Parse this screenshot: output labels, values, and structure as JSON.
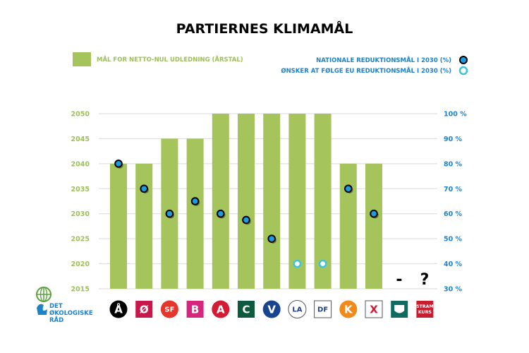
{
  "chart_data": {
    "type": "bar",
    "title": "PARTIERNES KLIMAMÅL",
    "legend": {
      "bars": "MÅL FOR NETTO-NUL UDLEDNING (ÅRSTAL)",
      "national": "NATIONALE REDUKTIONSMÅL I 2030 (%)",
      "eu": "ØNSKER AT FØLGE EU REDUKTIONSMÅL I 2030 (%)"
    },
    "left_axis": {
      "ticks": [
        "2015",
        "2020",
        "2025",
        "2030",
        "2035",
        "2040",
        "2045",
        "2050"
      ],
      "ylim": [
        2015,
        2050
      ]
    },
    "right_axis": {
      "ticks": [
        "30 %",
        "40 %",
        "50 %",
        "60 %",
        "70 %",
        "80 %",
        "90 %",
        "100 %"
      ],
      "ylim": [
        30,
        100
      ]
    },
    "categories": [
      {
        "label": "Å",
        "color": "#000000",
        "shape": "circle"
      },
      {
        "label": "Ø",
        "color": "#c8174b",
        "shape": "square"
      },
      {
        "label": "SF",
        "color": "#e4362a",
        "shape": "circle"
      },
      {
        "label": "B",
        "color": "#d6257f",
        "shape": "square"
      },
      {
        "label": "A",
        "color": "#d41b34",
        "shape": "circle"
      },
      {
        "label": "C",
        "color": "#0d5a3e",
        "shape": "square"
      },
      {
        "label": "V",
        "color": "#17458f",
        "shape": "circle"
      },
      {
        "label": "LA",
        "color": "#ffffff",
        "shape": "circle"
      },
      {
        "label": "DF",
        "color": "#ffffff",
        "shape": "square"
      },
      {
        "label": "K",
        "color": "#f08a1a",
        "shape": "circle"
      },
      {
        "label": "X",
        "color": "#ffffff",
        "shape": "square"
      },
      {
        "label": "",
        "color": "#0d6b62",
        "shape": "square"
      },
      {
        "label": "STRAM KURS",
        "color": "#c81d2e",
        "shape": "square"
      }
    ],
    "series": [
      {
        "name": "MÅL FOR NETTO-NUL UDLEDNING (ÅRSTAL)",
        "type": "bar",
        "axis": "left",
        "values": [
          2040,
          2040,
          2045,
          2045,
          2050,
          2050,
          2050,
          2050,
          2050,
          2040,
          2040,
          null,
          null
        ]
      },
      {
        "name": "NATIONALE REDUKTIONSMÅL I 2030 (%)",
        "type": "scatter",
        "axis": "right",
        "values": [
          80,
          70,
          60,
          65,
          60,
          57.5,
          50,
          null,
          null,
          70,
          60,
          null,
          null
        ]
      },
      {
        "name": "ØNSKER AT FØLGE EU REDUKTIONSMÅL I 2030 (%)",
        "type": "scatter",
        "axis": "right",
        "values": [
          null,
          null,
          null,
          null,
          null,
          null,
          null,
          40,
          40,
          null,
          null,
          null,
          null
        ]
      }
    ],
    "annotations": [
      "-",
      "?"
    ],
    "colors": {
      "bar": "#a6c45c",
      "national": "#1d9be0",
      "eu": "#3fc3d8"
    }
  },
  "logo": {
    "line1": "DET",
    "line2": "ØKOLOGISKE",
    "line3": "RÅD"
  }
}
